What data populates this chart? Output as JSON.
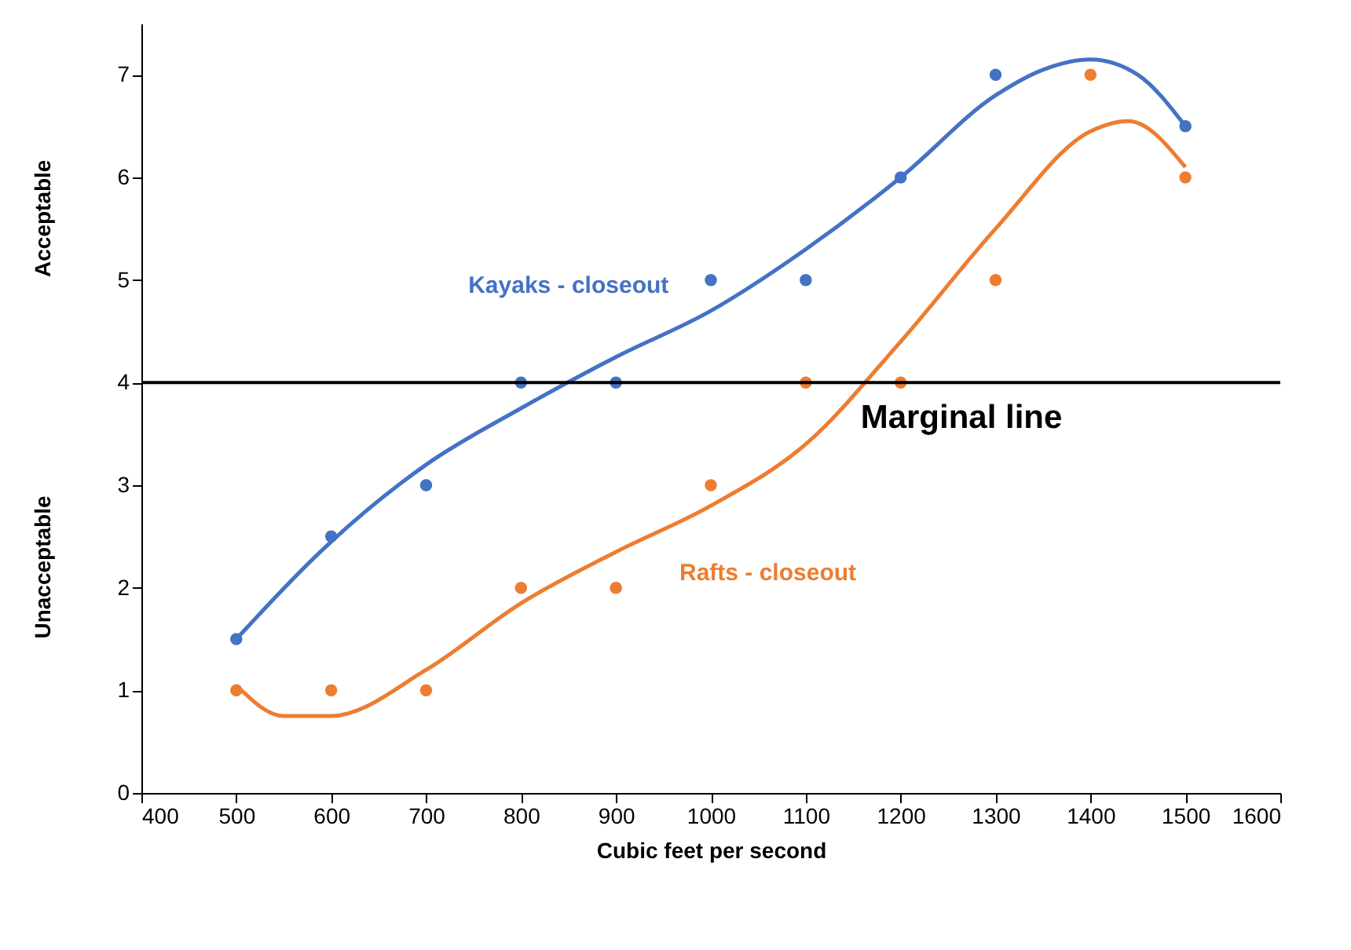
{
  "chart_data": {
    "type": "scatter",
    "xlabel": "Cubic feet per second",
    "annotations": [
      "Acceptable",
      "Unacceptable"
    ],
    "x": [
      500,
      600,
      700,
      800,
      900,
      1000,
      1100,
      1200,
      1300,
      1400,
      1500
    ],
    "series": [
      {
        "name": "Kayaks - closeout",
        "color": "#4472c4",
        "values": [
          1.5,
          2.5,
          3,
          4,
          4,
          5,
          5,
          6,
          7,
          null,
          6.5
        ]
      },
      {
        "name": "Rafts - closeout",
        "color": "#ed7d31",
        "values": [
          1,
          1,
          1,
          2,
          2,
          3,
          4,
          4,
          5,
          7,
          6
        ]
      },
      {
        "type": "line",
        "marker": "none",
        "color": "#4472c4",
        "x": [
          500,
          600,
          700,
          800,
          900,
          1000,
          1100,
          1200,
          1300,
          1350,
          1400,
          1450,
          1500
        ],
        "values": [
          1.5,
          2.45,
          3.2,
          3.75,
          4.25,
          4.7,
          5.3,
          6.0,
          6.8,
          7.05,
          7.15,
          7.0,
          6.5
        ]
      },
      {
        "type": "line",
        "marker": "none",
        "color": "#ed7d31",
        "x": [
          500,
          550,
          600,
          700,
          800,
          900,
          1000,
          1100,
          1200,
          1300,
          1400,
          1440,
          1500
        ],
        "values": [
          1.05,
          0.75,
          0.75,
          1.2,
          1.85,
          2.35,
          2.8,
          3.4,
          4.4,
          5.5,
          6.45,
          6.55,
          6.1
        ]
      }
    ],
    "ref_lines": [
      {
        "axis": "y",
        "value": 4,
        "label": "Marginal line",
        "color": "#000000"
      }
    ],
    "xlim": [
      400,
      1600
    ],
    "xticks": [
      400,
      500,
      600,
      700,
      800,
      900,
      1000,
      1100,
      1200,
      1300,
      1400,
      1500,
      1600
    ],
    "ylim": [
      0,
      7.5
    ],
    "yticks": [
      0,
      1,
      2,
      3,
      4,
      5,
      6,
      7
    ],
    "grid": false,
    "marker": "circle",
    "line_style": "solid"
  }
}
